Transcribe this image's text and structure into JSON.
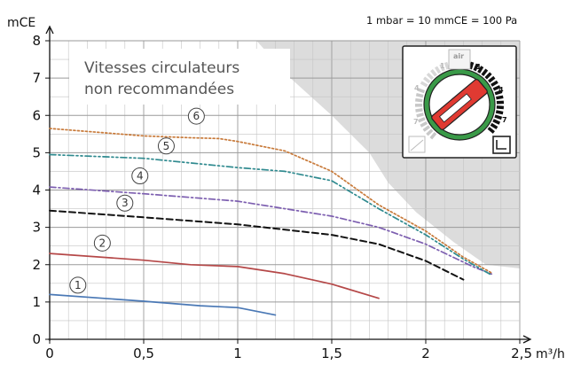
{
  "chart_data": {
    "type": "line",
    "title": "",
    "xlabel": "m³/h",
    "ylabel": "mCE",
    "unit_note": "1 mbar = 10 mmCE = 100 Pa",
    "xlim": [
      0,
      2.5
    ],
    "ylim": [
      0,
      8
    ],
    "x_ticks": [
      {
        "v": 0,
        "label": "0"
      },
      {
        "v": 0.5,
        "label": "0,5"
      },
      {
        "v": 1,
        "label": "1"
      },
      {
        "v": 1.5,
        "label": "1,5"
      },
      {
        "v": 2,
        "label": "2"
      },
      {
        "v": 2.5,
        "label": "2,5"
      }
    ],
    "y_ticks": [
      {
        "v": 0,
        "label": "0"
      },
      {
        "v": 1,
        "label": "1"
      },
      {
        "v": 2,
        "label": "2"
      },
      {
        "v": 3,
        "label": "3"
      },
      {
        "v": 4,
        "label": "4"
      },
      {
        "v": 5,
        "label": "5"
      },
      {
        "v": 6,
        "label": "6"
      },
      {
        "v": 7,
        "label": "7"
      },
      {
        "v": 8,
        "label": "8"
      }
    ],
    "grid": true,
    "shaded_region_label": "Vitesses circulateurs non recommandées",
    "shaded_region_boundary": [
      [
        1.1,
        8
      ],
      [
        1.28,
        7
      ],
      [
        1.5,
        6
      ],
      [
        1.7,
        5
      ],
      [
        1.8,
        4.2
      ],
      [
        1.95,
        3.4
      ],
      [
        2.15,
        2.6
      ],
      [
        2.32,
        2
      ],
      [
        2.5,
        1.9
      ]
    ],
    "series": [
      {
        "name": "1",
        "color": "#4a78b5",
        "dash": "solid",
        "x": [
          0,
          0.5,
          0.8,
          1.0,
          1.2
        ],
        "y": [
          1.2,
          1.02,
          0.9,
          0.85,
          0.65
        ]
      },
      {
        "name": "2",
        "color": "#b54848",
        "dash": "solid",
        "x": [
          0,
          0.5,
          0.75,
          1.0,
          1.25,
          1.5,
          1.75
        ],
        "y": [
          2.3,
          2.12,
          2.0,
          1.95,
          1.76,
          1.48,
          1.1
        ]
      },
      {
        "name": "3",
        "color": "#111111",
        "dash": "dash",
        "x": [
          0,
          0.5,
          1.0,
          1.5,
          1.75,
          2.0,
          2.2
        ],
        "y": [
          3.45,
          3.27,
          3.08,
          2.8,
          2.55,
          2.1,
          1.6
        ]
      },
      {
        "name": "4",
        "color": "#7d5fb0",
        "dash": "dashdot",
        "x": [
          0,
          0.5,
          1.0,
          1.5,
          1.75,
          2.0,
          2.25,
          2.35
        ],
        "y": [
          4.08,
          3.9,
          3.7,
          3.3,
          3.0,
          2.55,
          1.95,
          1.75
        ]
      },
      {
        "name": "5",
        "color": "#2f8a8f",
        "dash": "dashdotdot",
        "x": [
          0,
          0.5,
          1.0,
          1.25,
          1.5,
          1.75,
          2.0,
          2.2,
          2.35
        ],
        "y": [
          4.95,
          4.85,
          4.6,
          4.5,
          4.25,
          3.5,
          2.8,
          2.15,
          1.72
        ]
      },
      {
        "name": "6",
        "color": "#c87a3a",
        "dash": "dot",
        "x": [
          0,
          0.25,
          0.5,
          0.75,
          0.9,
          1.0,
          1.25,
          1.5,
          1.75,
          2.0,
          2.2,
          2.35
        ],
        "y": [
          5.65,
          5.55,
          5.45,
          5.4,
          5.38,
          5.3,
          5.05,
          4.5,
          3.6,
          2.9,
          2.2,
          1.78
        ]
      }
    ],
    "series_labels": [
      {
        "name": "1",
        "x": 0.15,
        "y": 1.45
      },
      {
        "name": "2",
        "x": 0.28,
        "y": 2.58
      },
      {
        "name": "3",
        "x": 0.4,
        "y": 3.65
      },
      {
        "name": "4",
        "x": 0.48,
        "y": 4.38
      },
      {
        "name": "5",
        "x": 0.62,
        "y": 5.18
      },
      {
        "name": "6",
        "x": 0.78,
        "y": 5.98
      }
    ],
    "dial": {
      "labels_outer": [
        "1",
        "4",
        "7"
      ],
      "labels_inner": [
        "1",
        "4",
        "7"
      ],
      "icon_top": "air",
      "icon_bottom_left": "curve-icon",
      "icon_bottom_right": "constant-icon"
    }
  }
}
